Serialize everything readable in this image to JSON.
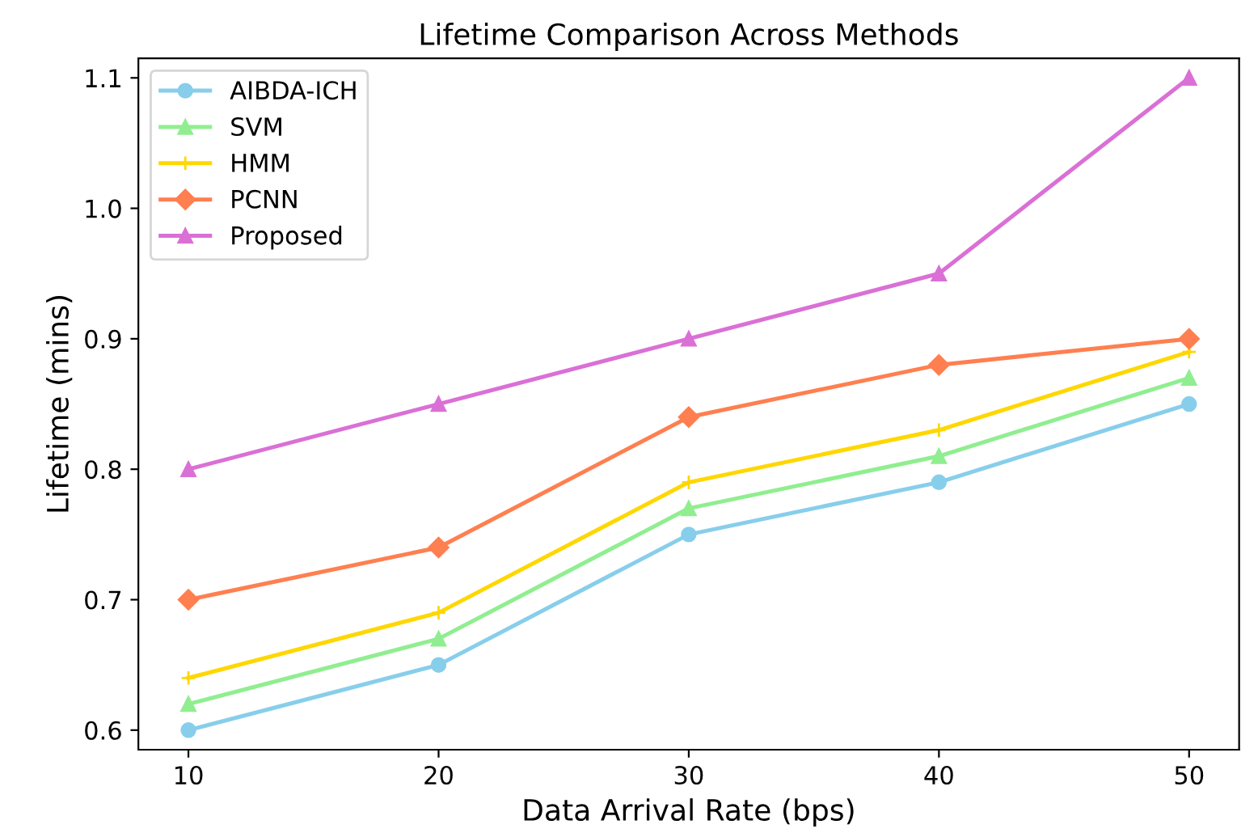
{
  "chart_data": {
    "type": "line",
    "title": "Lifetime Comparison Across Methods",
    "xlabel": "Data Arrival Rate (bps)",
    "ylabel": "Lifetime (mins)",
    "x": [
      10,
      20,
      30,
      40,
      50
    ],
    "series": [
      {
        "name": "AIBDA-ICH",
        "color": "#87ceeb",
        "marker": "circle",
        "values": [
          0.6,
          0.65,
          0.75,
          0.79,
          0.85
        ]
      },
      {
        "name": "SVM",
        "color": "#90ee90",
        "marker": "triangle",
        "values": [
          0.62,
          0.67,
          0.77,
          0.81,
          0.87
        ]
      },
      {
        "name": "HMM",
        "color": "#ffd700",
        "marker": "cross",
        "values": [
          0.64,
          0.69,
          0.79,
          0.83,
          0.89
        ]
      },
      {
        "name": "PCNN",
        "color": "#ff7f50",
        "marker": "diamond",
        "values": [
          0.7,
          0.74,
          0.84,
          0.88,
          0.9
        ]
      },
      {
        "name": "Proposed",
        "color": "#da70d6",
        "marker": "triangle",
        "values": [
          0.8,
          0.85,
          0.9,
          0.95,
          1.1
        ]
      }
    ],
    "xlim": [
      8,
      52
    ],
    "xticks": [
      10,
      20,
      30,
      40,
      50
    ],
    "ylim": [
      0.585,
      1.115
    ],
    "yticks": [
      {
        "value": 0.6,
        "label": "0.6"
      },
      {
        "value": 0.7,
        "label": "0.7"
      },
      {
        "value": 0.8,
        "label": "0.8"
      },
      {
        "value": 0.9,
        "label": "0.9"
      },
      {
        "value": 1.0,
        "label": "1.0"
      },
      {
        "value": 1.1,
        "label": "1.1"
      }
    ],
    "grid": false,
    "legend": "top left",
    "line_style": "solid"
  }
}
